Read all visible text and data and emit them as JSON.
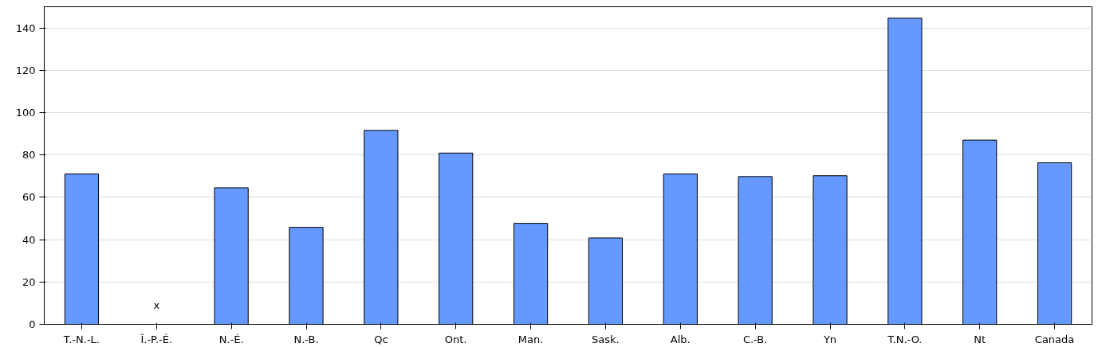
{
  "chart_data": {
    "type": "bar",
    "categories": [
      "T.-N.-L.",
      "Î.-P.-É.",
      "N.-É.",
      "N.-B.",
      "Qc",
      "Ont.",
      "Man.",
      "Sask.",
      "Alb.",
      "C.-B.",
      "Yn",
      "T.N.-O.",
      "Nt",
      "Canada"
    ],
    "values": [
      71,
      null,
      64.5,
      45.8,
      91.6,
      80.9,
      47.7,
      40.8,
      71,
      69.8,
      70.2,
      144.6,
      87,
      76.3
    ],
    "color": "#6699ff",
    "ylim": [
      0,
      150
    ],
    "yticks": [
      0,
      20,
      40,
      60,
      80,
      100,
      120,
      140
    ],
    "grid": "y",
    "annotations": [
      "x"
    ]
  }
}
